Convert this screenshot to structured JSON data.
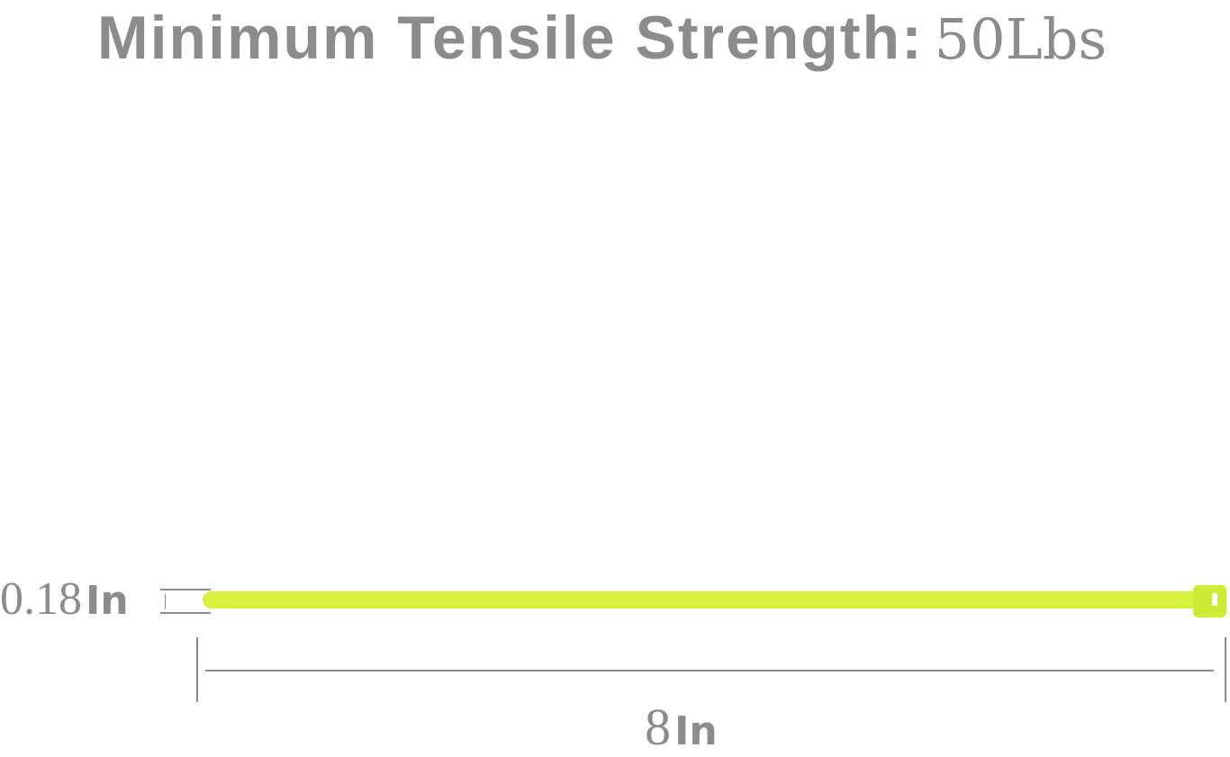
{
  "title": {
    "label": "Minimum Tensile Strength:",
    "value": "50Lbs"
  },
  "width_dimension": {
    "value": "0.18",
    "unit": "In"
  },
  "length_dimension": {
    "value": "8",
    "unit": "In"
  },
  "colors": {
    "text": "#8c8c8c",
    "cable_tie": "#d6f23f"
  }
}
